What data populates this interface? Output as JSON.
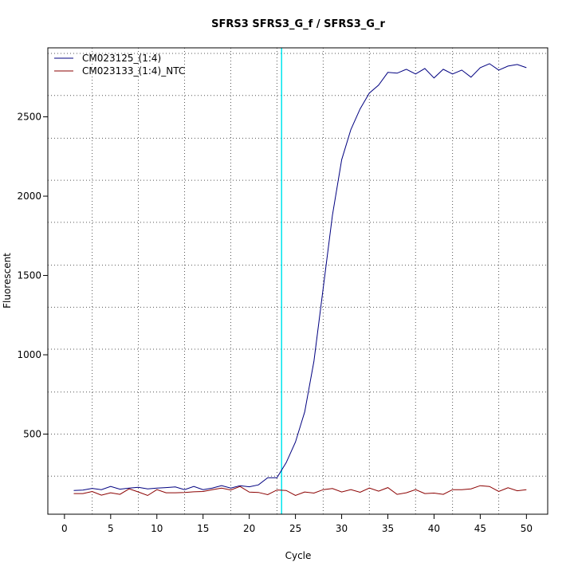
{
  "chart_data": {
    "type": "line",
    "title": "SFRS3  SFRS3_G_f / SFRS3_G_r",
    "xlabel": "Cycle",
    "ylabel": "Fluorescent",
    "xlim": [
      -1.8,
      52.3
    ],
    "ylim": [
      -5,
      2935
    ],
    "x_ticks": [
      0,
      5,
      10,
      15,
      20,
      25,
      30,
      35,
      40,
      45,
      50
    ],
    "y_ticks": [
      500,
      1000,
      1500,
      2000,
      2500
    ],
    "x_minor_grid": [
      3,
      8,
      13,
      18,
      23,
      28,
      33,
      38,
      42,
      47
    ],
    "y_minor_grid": [
      235,
      500,
      765,
      1035,
      1300,
      1565,
      1835,
      2100,
      2365,
      2635,
      2900
    ],
    "threshold_x": 23.5,
    "threshold_color": "#00e5ee",
    "grid": true,
    "legend_position": "top-left",
    "series": [
      {
        "name": "CM023125_(1:4)",
        "color": "#000080",
        "x": [
          1,
          2,
          3,
          4,
          5,
          6,
          7,
          8,
          9,
          10,
          11,
          12,
          13,
          14,
          15,
          16,
          17,
          18,
          19,
          20,
          21,
          22,
          23,
          24,
          25,
          26,
          27,
          28,
          29,
          30,
          31,
          32,
          33,
          34,
          35,
          36,
          37,
          38,
          39,
          40,
          41,
          42,
          43,
          44,
          45,
          46,
          47,
          48,
          49,
          50
        ],
        "y": [
          145,
          147,
          158,
          150,
          170,
          153,
          160,
          165,
          155,
          160,
          163,
          167,
          150,
          170,
          150,
          160,
          175,
          160,
          175,
          168,
          180,
          225,
          225,
          320,
          450,
          640,
          960,
          1420,
          1880,
          2230,
          2420,
          2550,
          2650,
          2700,
          2780,
          2775,
          2800,
          2770,
          2805,
          2745,
          2800,
          2770,
          2795,
          2750,
          2810,
          2835,
          2795,
          2820,
          2830,
          2810
        ]
      },
      {
        "name": "CM023133_(1:4)_NTC",
        "color": "#8b0000",
        "x": [
          1,
          2,
          3,
          4,
          5,
          6,
          7,
          8,
          9,
          10,
          11,
          12,
          13,
          14,
          15,
          16,
          17,
          18,
          19,
          20,
          21,
          22,
          23,
          24,
          25,
          26,
          27,
          28,
          29,
          30,
          31,
          32,
          33,
          34,
          35,
          36,
          37,
          38,
          39,
          40,
          41,
          42,
          43,
          44,
          45,
          46,
          47,
          48,
          49,
          50
        ],
        "y": [
          125,
          125,
          138,
          115,
          130,
          120,
          155,
          135,
          113,
          150,
          130,
          130,
          132,
          136,
          138,
          150,
          160,
          148,
          170,
          134,
          132,
          118,
          148,
          145,
          113,
          135,
          128,
          150,
          157,
          135,
          150,
          133,
          160,
          140,
          163,
          120,
          130,
          150,
          125,
          128,
          120,
          150,
          150,
          155,
          175,
          170,
          138,
          162,
          143,
          150
        ]
      }
    ]
  }
}
